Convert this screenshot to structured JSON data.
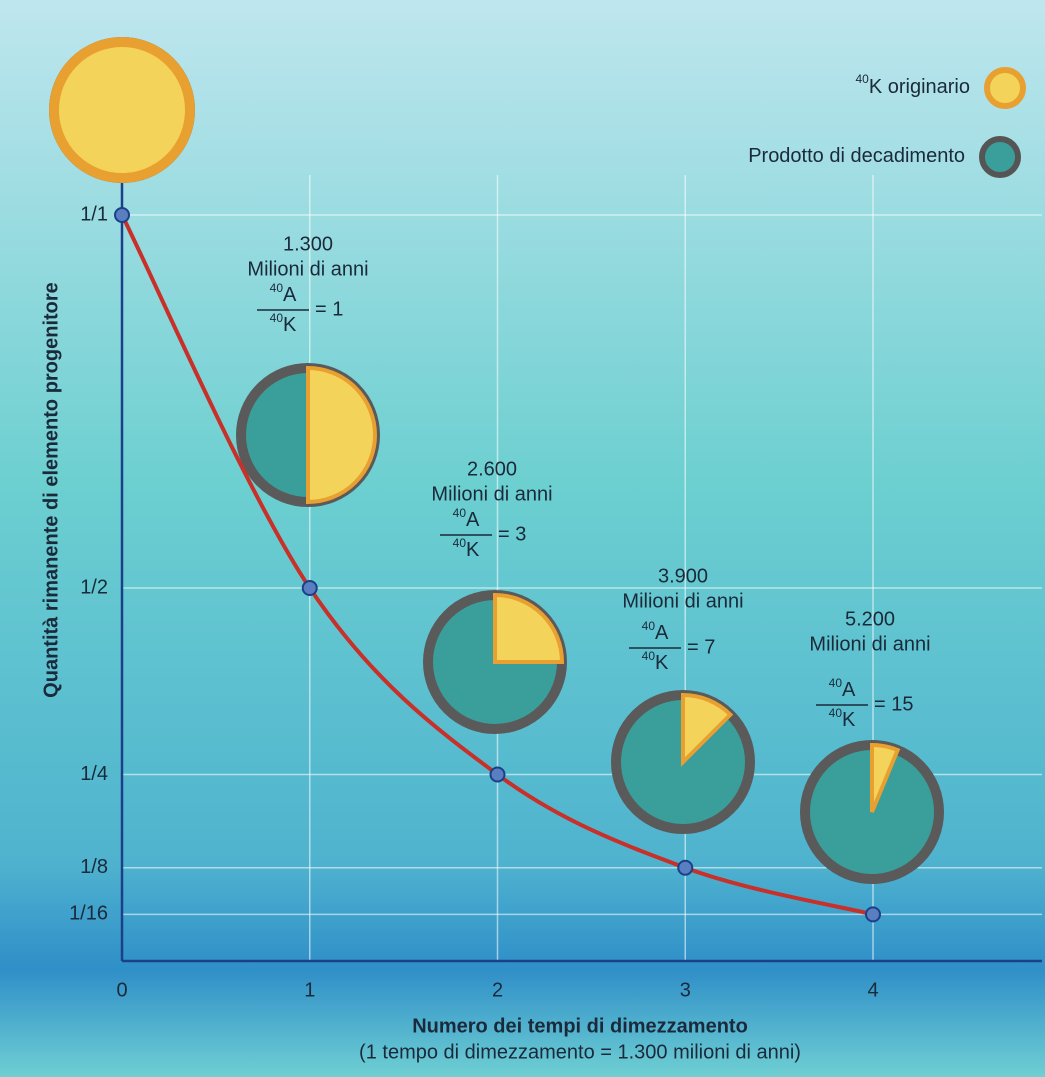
{
  "chart_data": {
    "type": "line",
    "y_label": "Quantità rimanente di elemento progenitore",
    "x_label": "Numero dei tempi di dimezzamento",
    "x_sublabel": "(1 tempo di dimezzamento = 1.300 milioni di anni)",
    "x": [
      0,
      1,
      2,
      3,
      4
    ],
    "series": [
      {
        "color": "#c8302a",
        "values": [
          1,
          0.5,
          0.25,
          0.125,
          0.0625
        ]
      }
    ],
    "xlim": [
      0,
      4.9
    ],
    "ylim": [
      0,
      1
    ],
    "xticks": [
      0,
      1,
      2,
      3,
      4
    ],
    "yticks": [
      {
        "value": 1,
        "label": "1/1"
      },
      {
        "value": 0.5,
        "label": "1/2"
      },
      {
        "value": 0.25,
        "label": "1/4"
      },
      {
        "value": 0.125,
        "label": "1/8"
      },
      {
        "value": 0.0625,
        "label": "1/16"
      }
    ],
    "grid": true,
    "legend": [
      {
        "mass": "40",
        "name": "K originario",
        "color": "#f3d35a"
      },
      {
        "name": "Prodotto di decadimento",
        "color": "#3a9e9a"
      }
    ],
    "annotations": [
      {
        "point": 1,
        "years": "1.300",
        "unit": "Milioni di anni",
        "mass": "40",
        "numerator": "A",
        "denominator": "K",
        "ratio": "= 1"
      },
      {
        "point": 2,
        "years": "2.600",
        "unit": "Milioni di anni",
        "mass": "40",
        "numerator": "A",
        "denominator": "K",
        "ratio": "= 3"
      },
      {
        "point": 3,
        "years": "3.900",
        "unit": "Milioni di anni",
        "mass": "40",
        "numerator": "A",
        "denominator": "K",
        "ratio": "= 7"
      },
      {
        "point": 4,
        "years": "5.200",
        "unit": "Milioni di anni",
        "mass": "40",
        "numerator": "A",
        "denominator": "K",
        "ratio": "= 15"
      }
    ]
  }
}
